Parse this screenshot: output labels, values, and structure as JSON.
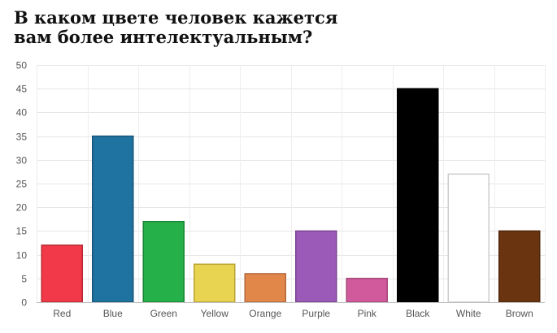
{
  "chart_data": {
    "type": "bar",
    "title_lines": [
      "В каком цвете человек кажется",
      "вам более интелектуальным?"
    ],
    "xlabel": "",
    "ylabel": "",
    "categories": [
      "Red",
      "Blue",
      "Green",
      "Yellow",
      "Orange",
      "Purple",
      "Pink",
      "Black",
      "White",
      "Brown"
    ],
    "values": [
      12,
      35,
      17,
      8,
      6,
      15,
      5,
      45,
      27,
      15
    ],
    "colors": [
      "#f2394a",
      "#1f73a0",
      "#25b04a",
      "#e9d451",
      "#e2874a",
      "#9b59b8",
      "#d05a9b",
      "#000000",
      "#ffffff",
      "#6a3410"
    ],
    "stroke_colors": [
      "#b8282e",
      "#175479",
      "#1a8533",
      "#b9a334",
      "#b3673a",
      "#7a4590",
      "#a44477",
      "#000000",
      "#cccccc",
      "#4f260c"
    ],
    "ylim": [
      0,
      50
    ],
    "yticks": [
      0,
      5,
      10,
      15,
      20,
      25,
      30,
      35,
      40,
      45,
      50
    ],
    "grid": true,
    "legend": "none"
  }
}
